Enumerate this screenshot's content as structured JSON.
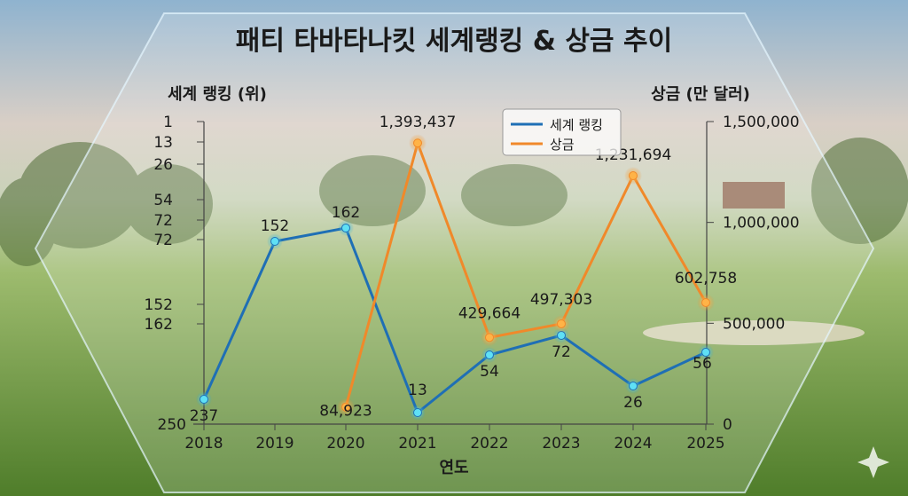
{
  "chart_data": {
    "type": "line",
    "title": "패티 타바타나킷 세계랭킹 & 상금 추이",
    "xlabel": "연도",
    "ylabel_left": "세계 랭킹 (위)",
    "ylabel_right": "상금 (만 달러)",
    "categories": [
      "2018",
      "2019",
      "2020",
      "2021",
      "2022",
      "2023",
      "2024",
      "2025"
    ],
    "left_ticks": [
      "1",
      "13",
      "26",
      "54",
      "72",
      "72",
      "152",
      "162",
      "250"
    ],
    "right_ticks": [
      "0",
      "500,000",
      "1,000,000",
      "1,500,000"
    ],
    "right_ylim": [
      0,
      1500000
    ],
    "series": [
      {
        "name": "세계 랭킹",
        "color": "#1f6fb5",
        "values": [
          237,
          152,
          162,
          13,
          54,
          72,
          26,
          56
        ],
        "labels": [
          "237",
          "152",
          "162",
          "13",
          "54",
          "72",
          "26",
          "56"
        ]
      },
      {
        "name": "상금",
        "color": "#f0892a",
        "values": [
          null,
          null,
          84923,
          1393437,
          429664,
          497303,
          1231694,
          602758
        ],
        "labels": [
          "",
          "",
          "84,923",
          "1,393,437",
          "429,664",
          "497,303",
          "1,231,694",
          "602,758"
        ]
      }
    ],
    "legend": "top-center",
    "grid": false
  }
}
